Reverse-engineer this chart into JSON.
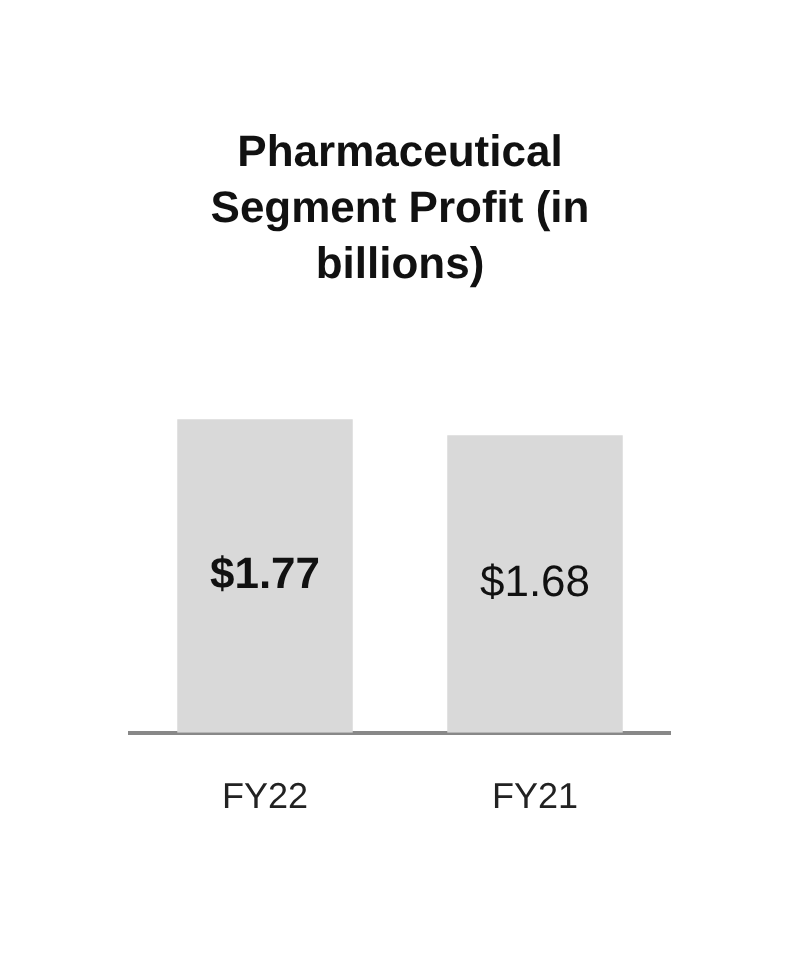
{
  "chart_data": {
    "type": "bar",
    "title": "Pharmaceutical Segment Profit (in billions)",
    "categories": [
      "FY22",
      "FY21"
    ],
    "values": [
      1.77,
      1.68
    ],
    "color": "#d9d9d9",
    "value_labels": [
      "$1.77",
      "$1.68"
    ],
    "grid": false,
    "legend": false
  }
}
